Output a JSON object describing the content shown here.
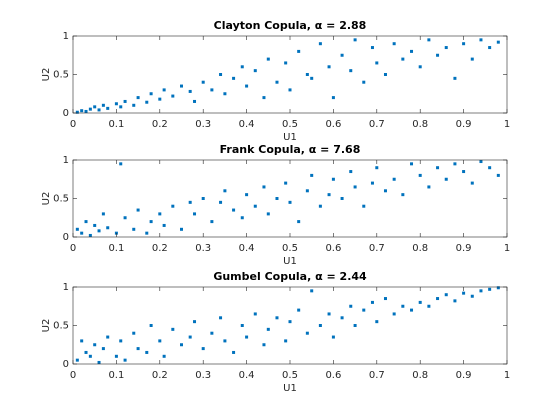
{
  "chart_data": [
    {
      "type": "scatter",
      "title": "Clayton Copula, α = 2.88",
      "xlabel": "U1",
      "ylabel": "U2",
      "color": "#0072BD",
      "xlim": [
        0,
        1
      ],
      "ylim": [
        0,
        1
      ],
      "xticks": [
        0,
        0.1,
        0.2,
        0.3,
        0.4,
        0.5,
        0.6,
        0.7,
        0.8,
        0.9,
        1
      ],
      "yticks": [
        0,
        0.5,
        1
      ],
      "x": [
        0.01,
        0.02,
        0.03,
        0.04,
        0.05,
        0.06,
        0.07,
        0.08,
        0.1,
        0.11,
        0.12,
        0.14,
        0.15,
        0.17,
        0.18,
        0.2,
        0.21,
        0.23,
        0.25,
        0.27,
        0.28,
        0.3,
        0.32,
        0.34,
        0.35,
        0.37,
        0.39,
        0.4,
        0.42,
        0.44,
        0.45,
        0.47,
        0.49,
        0.5,
        0.52,
        0.54,
        0.55,
        0.57,
        0.59,
        0.6,
        0.62,
        0.64,
        0.65,
        0.67,
        0.69,
        0.7,
        0.72,
        0.74,
        0.76,
        0.78,
        0.8,
        0.82,
        0.84,
        0.86,
        0.88,
        0.9,
        0.92,
        0.94,
        0.96,
        0.98
      ],
      "y": [
        0.01,
        0.03,
        0.02,
        0.05,
        0.08,
        0.04,
        0.1,
        0.06,
        0.12,
        0.08,
        0.15,
        0.1,
        0.2,
        0.14,
        0.25,
        0.18,
        0.3,
        0.22,
        0.35,
        0.28,
        0.15,
        0.4,
        0.3,
        0.5,
        0.25,
        0.45,
        0.6,
        0.35,
        0.55,
        0.2,
        0.7,
        0.4,
        0.65,
        0.3,
        0.8,
        0.5,
        0.45,
        0.9,
        0.6,
        0.2,
        0.75,
        0.55,
        0.95,
        0.4,
        0.85,
        0.65,
        0.5,
        0.9,
        0.7,
        0.8,
        0.6,
        0.95,
        0.75,
        0.85,
        0.45,
        0.9,
        0.7,
        0.95,
        0.85,
        0.92
      ]
    },
    {
      "type": "scatter",
      "title": "Frank Copula, α = 7.68",
      "xlabel": "U1",
      "ylabel": "U2",
      "color": "#0072BD",
      "xlim": [
        0,
        1
      ],
      "ylim": [
        0,
        1
      ],
      "xticks": [
        0,
        0.1,
        0.2,
        0.3,
        0.4,
        0.5,
        0.6,
        0.7,
        0.8,
        0.9,
        1
      ],
      "yticks": [
        0,
        0.5,
        1
      ],
      "x": [
        0.01,
        0.02,
        0.03,
        0.04,
        0.05,
        0.06,
        0.07,
        0.08,
        0.1,
        0.11,
        0.12,
        0.14,
        0.15,
        0.17,
        0.18,
        0.2,
        0.21,
        0.23,
        0.25,
        0.27,
        0.28,
        0.3,
        0.32,
        0.34,
        0.35,
        0.37,
        0.39,
        0.4,
        0.42,
        0.44,
        0.45,
        0.47,
        0.49,
        0.5,
        0.52,
        0.54,
        0.55,
        0.57,
        0.59,
        0.6,
        0.62,
        0.64,
        0.65,
        0.67,
        0.69,
        0.7,
        0.72,
        0.74,
        0.76,
        0.78,
        0.8,
        0.82,
        0.84,
        0.86,
        0.88,
        0.9,
        0.92,
        0.94,
        0.96,
        0.98
      ],
      "y": [
        0.1,
        0.05,
        0.2,
        0.02,
        0.15,
        0.08,
        0.3,
        0.12,
        0.05,
        0.95,
        0.25,
        0.1,
        0.35,
        0.05,
        0.2,
        0.3,
        0.15,
        0.4,
        0.1,
        0.45,
        0.3,
        0.5,
        0.2,
        0.45,
        0.6,
        0.35,
        0.25,
        0.55,
        0.4,
        0.65,
        0.3,
        0.5,
        0.7,
        0.45,
        0.2,
        0.6,
        0.8,
        0.4,
        0.55,
        0.75,
        0.5,
        0.85,
        0.65,
        0.4,
        0.7,
        0.9,
        0.6,
        0.75,
        0.55,
        0.95,
        0.8,
        0.65,
        0.9,
        0.75,
        0.95,
        0.85,
        0.7,
        0.98,
        0.9,
        0.8
      ]
    },
    {
      "type": "scatter",
      "title": "Gumbel Copula, α = 2.44",
      "xlabel": "U1",
      "ylabel": "U2",
      "color": "#0072BD",
      "xlim": [
        0,
        1
      ],
      "ylim": [
        0,
        1
      ],
      "xticks": [
        0,
        0.1,
        0.2,
        0.3,
        0.4,
        0.5,
        0.6,
        0.7,
        0.8,
        0.9,
        1
      ],
      "yticks": [
        0,
        0.5,
        1
      ],
      "x": [
        0.01,
        0.02,
        0.03,
        0.04,
        0.05,
        0.06,
        0.07,
        0.08,
        0.1,
        0.11,
        0.12,
        0.14,
        0.15,
        0.17,
        0.18,
        0.2,
        0.21,
        0.23,
        0.25,
        0.27,
        0.28,
        0.3,
        0.32,
        0.34,
        0.35,
        0.37,
        0.39,
        0.4,
        0.42,
        0.44,
        0.45,
        0.47,
        0.49,
        0.5,
        0.52,
        0.54,
        0.55,
        0.57,
        0.59,
        0.6,
        0.62,
        0.64,
        0.65,
        0.67,
        0.69,
        0.7,
        0.72,
        0.74,
        0.76,
        0.78,
        0.8,
        0.82,
        0.84,
        0.86,
        0.88,
        0.9,
        0.92,
        0.94,
        0.96,
        0.98
      ],
      "y": [
        0.05,
        0.3,
        0.15,
        0.1,
        0.25,
        0.02,
        0.2,
        0.35,
        0.1,
        0.3,
        0.05,
        0.4,
        0.2,
        0.15,
        0.5,
        0.3,
        0.1,
        0.45,
        0.25,
        0.35,
        0.55,
        0.2,
        0.4,
        0.6,
        0.3,
        0.15,
        0.5,
        0.35,
        0.65,
        0.25,
        0.45,
        0.6,
        0.3,
        0.55,
        0.7,
        0.4,
        0.95,
        0.5,
        0.65,
        0.35,
        0.6,
        0.75,
        0.5,
        0.7,
        0.8,
        0.55,
        0.85,
        0.65,
        0.75,
        0.7,
        0.8,
        0.75,
        0.85,
        0.9,
        0.82,
        0.92,
        0.88,
        0.95,
        0.97,
        0.99
      ]
    }
  ]
}
